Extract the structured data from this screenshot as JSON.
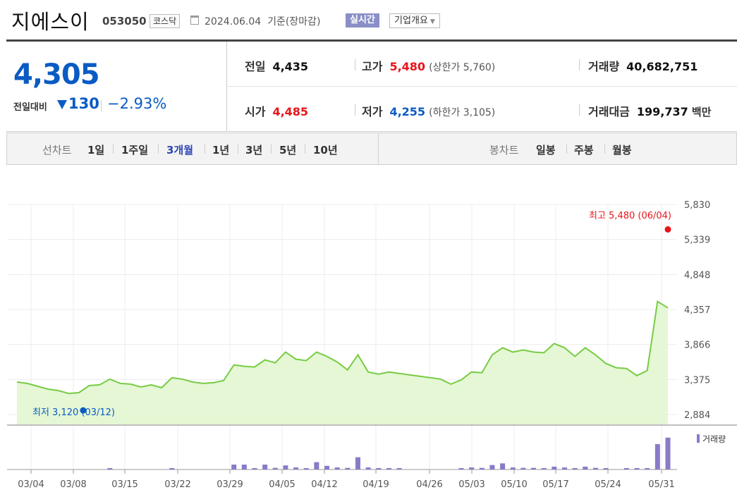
{
  "header": {
    "name": "지에스이",
    "code": "053050",
    "market": "코스닥",
    "date": "2024.06.04",
    "basis": "기준(장마감)",
    "realtime": "실시간",
    "company_info": "기업개요"
  },
  "summary": {
    "price": "4,305",
    "change_label": "전일대비",
    "change": "130",
    "change_pct": "−2.93%",
    "prev_label": "전일",
    "prev": "4,435",
    "open_label": "시가",
    "open": "4,485",
    "high_label": "고가",
    "high": "5,480",
    "upper_limit": "(상한가 5,760)",
    "low_label": "저가",
    "low": "4,255",
    "lower_limit": "(하한가 3,105)",
    "volume_label": "거래량",
    "volume": "40,682,751",
    "value_label": "거래대금",
    "value": "199,737",
    "value_unit": "백만"
  },
  "tabs": {
    "line_label": "선차트",
    "line": [
      "1일",
      "1주일",
      "3개월",
      "1년",
      "3년",
      "5년",
      "10년"
    ],
    "active": "3개월",
    "candle_label": "봉차트",
    "candle": [
      "일봉",
      "주봉",
      "월봉"
    ]
  },
  "colors": {
    "up": "#e8141a",
    "down": "#0a5bc4",
    "line": "#77cc44",
    "area": "#e5f7d5",
    "volume": "#8a7ac8"
  },
  "chart_data": {
    "type": "area",
    "ylim": [
      2884,
      5830
    ],
    "yticks": [
      "5,830",
      "5,339",
      "4,848",
      "4,357",
      "3,866",
      "3,375",
      "2,884"
    ],
    "xticks": [
      "03/04",
      "03/08",
      "03/15",
      "03/22",
      "03/29",
      "04/05",
      "04/12",
      "04/19",
      "04/26",
      "05/03",
      "05/10",
      "05/17",
      "05/24",
      "05/31"
    ],
    "price": [
      3340,
      3320,
      3280,
      3240,
      3220,
      3180,
      3190,
      3290,
      3300,
      3380,
      3320,
      3310,
      3270,
      3300,
      3260,
      3400,
      3380,
      3340,
      3320,
      3330,
      3360,
      3580,
      3560,
      3550,
      3650,
      3610,
      3760,
      3660,
      3640,
      3760,
      3700,
      3620,
      3510,
      3720,
      3480,
      3450,
      3480,
      3460,
      3440,
      3420,
      3400,
      3380,
      3310,
      3370,
      3480,
      3470,
      3720,
      3820,
      3760,
      3790,
      3760,
      3750,
      3880,
      3820,
      3700,
      3820,
      3720,
      3600,
      3540,
      3530,
      3430,
      3500,
      4470,
      4380
    ],
    "volume": [
      0,
      0,
      0,
      0,
      0,
      0,
      0,
      0,
      0,
      0.02,
      0,
      0,
      0,
      0,
      0,
      0.01,
      0,
      0,
      0,
      0,
      0,
      0.12,
      0.12,
      0.03,
      0.12,
      0.04,
      0.1,
      0.05,
      0.03,
      0.18,
      0.09,
      0.05,
      0.04,
      0.3,
      0.05,
      0.03,
      0.03,
      0.02,
      0,
      0,
      0,
      0,
      0,
      0.02,
      0.05,
      0.04,
      0.11,
      0.15,
      0.05,
      0.04,
      0.04,
      0.03,
      0.07,
      0.05,
      0.03,
      0.07,
      0.04,
      0.03,
      0,
      0.02,
      0.02,
      0.02,
      0.62,
      0.78
    ],
    "max_annotation": "최고 5,480 (06/04)",
    "max_value": 5480,
    "max_index": 63,
    "min_annotation": "최저 3,120 (03/12)",
    "min_value": 3120,
    "min_index": 6,
    "volume_legend": "거래량"
  }
}
